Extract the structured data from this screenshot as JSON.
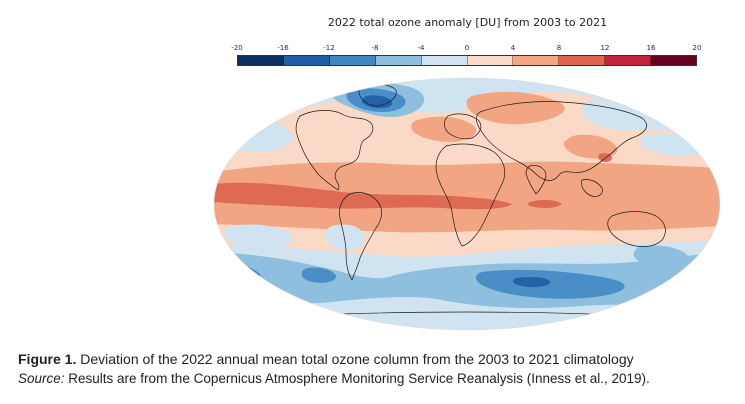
{
  "colorbar": {
    "title": "2022 total ozone anomaly [DU] from 2003 to 2021",
    "ticks": [
      "-20",
      "-16",
      "-12",
      "-8",
      "-4",
      "0",
      "4",
      "8",
      "12",
      "16",
      "20"
    ],
    "colors": [
      "#0b2f5e",
      "#1f5ea8",
      "#3f86c2",
      "#8fbfdf",
      "#cfe3f0",
      "#fbd9c7",
      "#f4a582",
      "#e0654f",
      "#c0243a",
      "#67001f"
    ]
  },
  "map": {
    "projection": "Robinson",
    "variable": "total ozone column anomaly",
    "units": "DU",
    "palette": {
      "band_neg_16": "#2163a8",
      "band_neg_12": "#4a8ec8",
      "band_neg_8": "#8fbfdf",
      "band_neg_4": "#cfe3f0",
      "band_pos_4": "#fbd9c7",
      "band_pos_8": "#f2a583",
      "band_pos_12": "#de6a52",
      "coastline": "#1a1a1a"
    }
  },
  "caption": {
    "figure_label": "Figure 1.",
    "figure_text": " Deviation of the 2022 annual mean total ozone column from the 2003 to 2021 climatology",
    "source_label": "Source:",
    "source_text": " Results are from the Copernicus Atmosphere Monitoring Service Reanalysis (Inness et al., 2019)."
  }
}
